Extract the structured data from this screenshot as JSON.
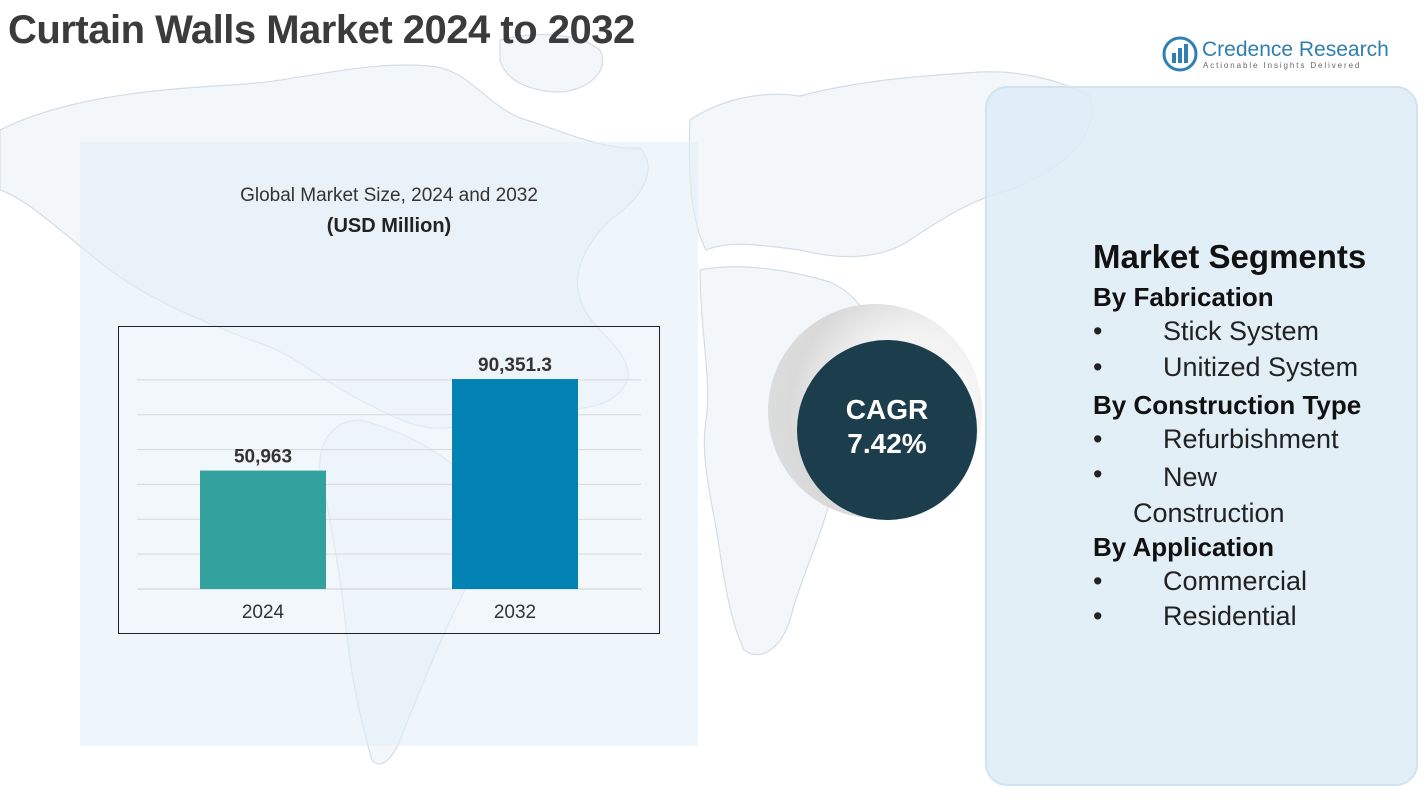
{
  "header": {
    "title": "Curtain Walls Market 2024 to 2032"
  },
  "logo": {
    "name": "Credence Research",
    "tagline": "Actionable Insights Delivered",
    "icon": "bar-chart-circle-icon",
    "color": "#2f7fb3"
  },
  "chart_data": {
    "type": "bar",
    "title": "Global Market Size, 2024 and 2032",
    "unit_label": "(USD Million)",
    "categories": [
      "2024",
      "2032"
    ],
    "values": [
      50963,
      90351.3
    ],
    "value_labels": [
      "50,963",
      "90,351.3"
    ],
    "colors": [
      "#33a19d",
      "#0382b4"
    ],
    "ylim": [
      0,
      105000
    ],
    "grid": true,
    "xlabel": "",
    "ylabel": ""
  },
  "cagr": {
    "label": "CAGR",
    "value": "7.42%"
  },
  "segments": {
    "heading": "Market Segments",
    "groups": [
      {
        "title": "By Fabrication",
        "items": [
          "Stick System",
          "Unitized System"
        ]
      },
      {
        "title": "By Construction Type",
        "items": [
          "Refurbishment",
          "New Construction"
        ]
      },
      {
        "title": "By Application",
        "items": [
          "Commercial",
          "Residential"
        ]
      }
    ]
  }
}
